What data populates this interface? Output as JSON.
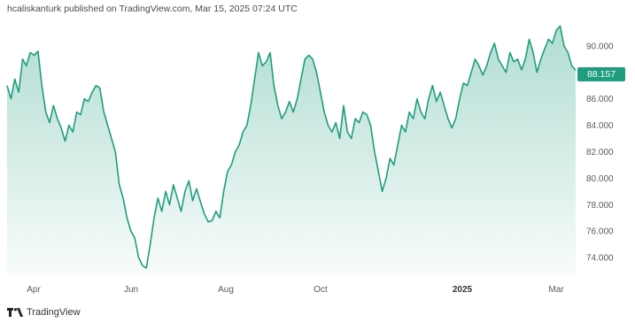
{
  "header": {
    "author": "hcaliskanturk",
    "published_text": "published on TradingView.com, Mar 15, 2025 07:24 UTC"
  },
  "footer": {
    "brand": "TradingView"
  },
  "colors": {
    "line": "#1f9d7e",
    "badge": "#1f9d7e",
    "axis_text": "#5a5a5a"
  },
  "icons": {
    "logo": "tradingview-logo-icon"
  },
  "chart_data": {
    "type": "area",
    "current_price_label": "88.157",
    "y_ticks": [
      "74.000",
      "76.000",
      "78.000",
      "80.000",
      "82.000",
      "84.000",
      "86.000",
      "88.000",
      "90.000"
    ],
    "ylim": [
      72.6,
      92.0
    ],
    "x_ticks": [
      {
        "label": "Apr",
        "bold": false
      },
      {
        "label": "Jun",
        "bold": false
      },
      {
        "label": "Aug",
        "bold": false
      },
      {
        "label": "Oct",
        "bold": false
      },
      {
        "label": "2025",
        "bold": true
      },
      {
        "label": "Mar",
        "bold": false
      }
    ],
    "grid": false,
    "series": [
      {
        "values": [
          87.0,
          86.0,
          87.5,
          86.5,
          89.0,
          88.5,
          89.5,
          89.3,
          89.6,
          87.0,
          85.0,
          84.2,
          85.5,
          84.5,
          83.8,
          82.8,
          84.0,
          83.5,
          85.0,
          84.8,
          86.0,
          85.8,
          86.5,
          87.0,
          86.8,
          85.0,
          84.0,
          83.0,
          82.0,
          79.5,
          78.5,
          77.0,
          76.0,
          75.5,
          74.0,
          73.4,
          73.2,
          75.0,
          77.0,
          78.5,
          77.5,
          79.0,
          78.0,
          79.5,
          78.5,
          77.5,
          79.0,
          79.8,
          78.3,
          79.2,
          78.2,
          77.3,
          76.7,
          76.8,
          77.5,
          77.0,
          79.0,
          80.5,
          81.0,
          82.0,
          82.5,
          83.5,
          84.0,
          85.5,
          87.5,
          89.5,
          88.5,
          88.8,
          89.5,
          87.0,
          85.5,
          84.5,
          85.0,
          85.8,
          85.0,
          86.0,
          87.5,
          89.0,
          89.3,
          89.0,
          88.0,
          86.5,
          85.0,
          84.0,
          83.5,
          84.2,
          83.0,
          85.5,
          83.5,
          83.0,
          84.5,
          84.2,
          85.0,
          84.8,
          84.0,
          82.0,
          80.5,
          79.0,
          80.0,
          81.5,
          81.0,
          82.5,
          84.0,
          83.5,
          85.0,
          84.5,
          86.0,
          85.0,
          84.5,
          86.0,
          87.0,
          85.8,
          86.5,
          85.5,
          84.5,
          83.8,
          84.5,
          86.0,
          87.2,
          87.0,
          88.0,
          89.0,
          88.5,
          87.8,
          88.5,
          89.5,
          90.2,
          89.0,
          88.5,
          88.0,
          89.5,
          88.8,
          89.0,
          88.2,
          89.0,
          90.5,
          89.5,
          88.0,
          89.0,
          89.8,
          90.5,
          90.2,
          91.2,
          91.5,
          90.0,
          89.5,
          88.5,
          88.157
        ]
      }
    ]
  }
}
